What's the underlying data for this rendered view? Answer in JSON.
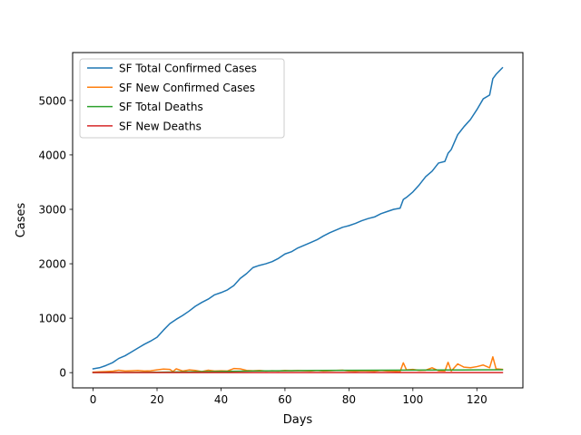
{
  "chart_data": {
    "type": "line",
    "title": "",
    "xlabel": "Days",
    "ylabel": "Cases",
    "xlim": [
      -6.4,
      134.4
    ],
    "ylim": [
      -280,
      5880
    ],
    "xticks": [
      0,
      20,
      40,
      60,
      80,
      100,
      120
    ],
    "yticks": [
      0,
      1000,
      2000,
      3000,
      4000,
      5000
    ],
    "grid": false,
    "legend_position": "top-left",
    "series": [
      {
        "name": "SF Total Confirmed Cases",
        "color": "#1f77b4",
        "x": [
          0,
          2,
          4,
          6,
          8,
          10,
          12,
          14,
          16,
          18,
          20,
          22,
          24,
          26,
          28,
          30,
          32,
          34,
          36,
          38,
          40,
          42,
          44,
          46,
          48,
          50,
          52,
          54,
          56,
          58,
          60,
          62,
          64,
          66,
          68,
          70,
          72,
          74,
          76,
          78,
          80,
          82,
          84,
          86,
          88,
          90,
          92,
          94,
          96,
          97,
          98,
          100,
          102,
          104,
          106,
          108,
          110,
          111,
          112,
          114,
          116,
          118,
          120,
          122,
          124,
          125,
          126,
          128
        ],
        "values": [
          70,
          90,
          130,
          180,
          260,
          310,
          380,
          450,
          520,
          580,
          650,
          780,
          900,
          980,
          1050,
          1130,
          1220,
          1290,
          1350,
          1430,
          1470,
          1520,
          1600,
          1730,
          1820,
          1930,
          1970,
          2000,
          2040,
          2100,
          2180,
          2220,
          2290,
          2340,
          2390,
          2440,
          2510,
          2570,
          2620,
          2670,
          2700,
          2740,
          2790,
          2830,
          2860,
          2920,
          2960,
          3000,
          3020,
          3180,
          3220,
          3320,
          3450,
          3600,
          3700,
          3850,
          3880,
          4030,
          4100,
          4370,
          4520,
          4650,
          4830,
          5030,
          5100,
          5400,
          5480,
          5600
        ]
      },
      {
        "name": "SF New Confirmed Cases",
        "color": "#ff7f0e",
        "x": [
          0,
          2,
          4,
          6,
          8,
          10,
          12,
          14,
          16,
          18,
          20,
          22,
          24,
          25,
          26,
          28,
          30,
          32,
          34,
          36,
          38,
          40,
          42,
          44,
          46,
          48,
          50,
          52,
          54,
          56,
          58,
          60,
          62,
          64,
          66,
          68,
          70,
          72,
          74,
          76,
          78,
          80,
          82,
          84,
          86,
          88,
          90,
          92,
          94,
          96,
          97,
          98,
          100,
          102,
          104,
          106,
          108,
          110,
          111,
          112,
          114,
          116,
          118,
          120,
          122,
          124,
          125,
          126,
          128
        ],
        "values": [
          10,
          15,
          20,
          25,
          45,
          30,
          35,
          40,
          30,
          35,
          50,
          65,
          60,
          20,
          70,
          30,
          50,
          40,
          20,
          45,
          30,
          35,
          30,
          75,
          70,
          40,
          35,
          40,
          30,
          35,
          30,
          40,
          35,
          40,
          35,
          30,
          40,
          30,
          35,
          40,
          45,
          30,
          25,
          35,
          30,
          25,
          40,
          30,
          25,
          20,
          180,
          50,
          60,
          40,
          45,
          90,
          35,
          30,
          190,
          30,
          160,
          100,
          90,
          110,
          140,
          90,
          290,
          70,
          60
        ]
      },
      {
        "name": "SF Total Deaths",
        "color": "#2ca02c",
        "x": [
          0,
          10,
          20,
          30,
          40,
          50,
          60,
          70,
          80,
          90,
          100,
          110,
          120,
          128
        ],
        "values": [
          1,
          3,
          8,
          15,
          22,
          30,
          35,
          40,
          42,
          44,
          46,
          48,
          50,
          52
        ]
      },
      {
        "name": "SF New Deaths",
        "color": "#d62728",
        "x": [
          0,
          20,
          40,
          60,
          80,
          100,
          120,
          128
        ],
        "values": [
          0,
          1,
          0,
          1,
          0,
          1,
          0,
          0
        ]
      }
    ]
  }
}
